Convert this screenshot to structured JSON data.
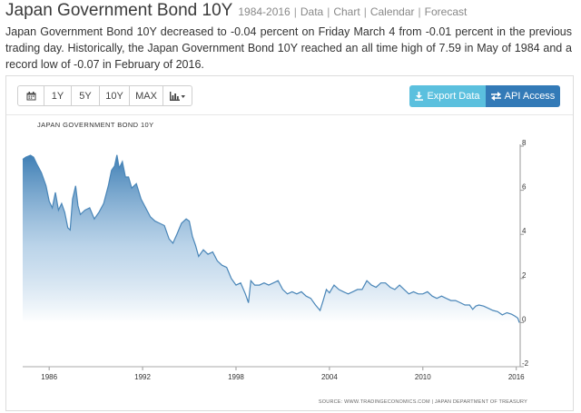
{
  "header": {
    "title": "Japan Government Bond 10Y",
    "range": "1984-2016",
    "links": [
      "Data",
      "Chart",
      "Calendar",
      "Forecast"
    ],
    "description": "Japan Government Bond 10Y decreased to -0.04 percent on Friday March 4 from -0.01 percent in the previous trading day. Historically, the Japan Government Bond 10Y reached an all time high of 7.59 in May of 1984 and a record low of -0.07 in February of 2016."
  },
  "toolbar": {
    "buttons": [
      "1Y",
      "5Y",
      "10Y",
      "MAX"
    ],
    "export_label": "Export Data",
    "api_label": "API Access"
  },
  "colors": {
    "line": "#4a86b8",
    "fill_top": "#3f7fb5",
    "export_bg": "#5bc0de",
    "api_bg": "#337ab7"
  },
  "icons": {
    "calendar": "calendar-icon",
    "chart_type": "bar-chart-icon",
    "export": "download-icon",
    "api": "exchange-icon"
  },
  "chart_data": {
    "type": "area",
    "title": "JAPAN GOVERNMENT BOND 10Y",
    "source": "SOURCE: WWW.TRADINGECONOMICS.COM | JAPAN DEPARTMENT OF TREASURY",
    "x_ticks": [
      "1986",
      "1992",
      "1998",
      "2004",
      "2010",
      "2016"
    ],
    "y_ticks": [
      -2,
      0,
      2,
      4,
      6,
      8
    ],
    "ylim": [
      -2,
      8
    ],
    "xlim": [
      1984.3,
      2016.25
    ],
    "grid": false,
    "y_axis_side": "right",
    "x": [
      1984.3,
      1984.5,
      1984.8,
      1985.0,
      1985.2,
      1985.5,
      1985.8,
      1986.0,
      1986.2,
      1986.4,
      1986.6,
      1986.8,
      1987.0,
      1987.2,
      1987.35,
      1987.5,
      1987.7,
      1987.85,
      1988.0,
      1988.3,
      1988.6,
      1988.9,
      1989.2,
      1989.5,
      1989.8,
      1990.0,
      1990.2,
      1990.35,
      1990.5,
      1990.7,
      1990.9,
      1991.1,
      1991.3,
      1991.6,
      1991.9,
      1992.2,
      1992.5,
      1992.8,
      1993.1,
      1993.4,
      1993.7,
      1993.95,
      1994.2,
      1994.5,
      1994.8,
      1995.0,
      1995.2,
      1995.4,
      1995.6,
      1995.9,
      1996.2,
      1996.5,
      1996.8,
      1997.1,
      1997.4,
      1997.7,
      1998.0,
      1998.3,
      1998.6,
      1998.8,
      1998.95,
      1999.2,
      1999.5,
      1999.8,
      2000.1,
      2000.4,
      2000.7,
      2001.0,
      2001.3,
      2001.6,
      2001.9,
      2002.2,
      2002.5,
      2002.8,
      2003.1,
      2003.4,
      2003.6,
      2003.8,
      2004.0,
      2004.3,
      2004.6,
      2004.9,
      2005.2,
      2005.5,
      2005.8,
      2006.1,
      2006.4,
      2006.7,
      2007.0,
      2007.3,
      2007.6,
      2007.9,
      2008.2,
      2008.5,
      2008.8,
      2009.1,
      2009.4,
      2009.7,
      2010.0,
      2010.3,
      2010.6,
      2010.9,
      2011.2,
      2011.5,
      2011.8,
      2012.1,
      2012.4,
      2012.7,
      2013.0,
      2013.2,
      2013.4,
      2013.6,
      2013.9,
      2014.2,
      2014.5,
      2014.8,
      2015.1,
      2015.4,
      2015.7,
      2015.9,
      2016.0,
      2016.1,
      2016.2
    ],
    "values": [
      7.4,
      7.5,
      7.59,
      7.5,
      7.2,
      6.8,
      6.2,
      5.5,
      5.2,
      5.9,
      5.1,
      5.4,
      5.0,
      4.3,
      4.2,
      5.6,
      6.2,
      5.3,
      4.9,
      5.1,
      5.2,
      4.7,
      5.0,
      5.4,
      6.2,
      6.9,
      7.1,
      7.6,
      7.0,
      7.3,
      6.6,
      6.6,
      6.1,
      6.3,
      5.6,
      5.2,
      4.8,
      4.6,
      4.5,
      4.4,
      3.8,
      3.6,
      4.0,
      4.5,
      4.7,
      4.6,
      3.9,
      3.5,
      3.0,
      3.3,
      3.1,
      3.2,
      2.8,
      2.6,
      2.5,
      2.0,
      1.7,
      1.8,
      1.3,
      0.9,
      1.9,
      1.7,
      1.7,
      1.8,
      1.7,
      1.8,
      1.9,
      1.5,
      1.3,
      1.4,
      1.3,
      1.4,
      1.2,
      1.1,
      0.8,
      0.55,
      1.0,
      1.5,
      1.35,
      1.7,
      1.5,
      1.4,
      1.3,
      1.4,
      1.5,
      1.5,
      1.9,
      1.7,
      1.6,
      1.8,
      1.8,
      1.6,
      1.5,
      1.7,
      1.5,
      1.3,
      1.4,
      1.3,
      1.3,
      1.4,
      1.2,
      1.1,
      1.2,
      1.1,
      1.0,
      1.0,
      0.9,
      0.8,
      0.8,
      0.6,
      0.75,
      0.8,
      0.75,
      0.65,
      0.55,
      0.5,
      0.35,
      0.45,
      0.38,
      0.3,
      0.25,
      0.2,
      0.0
    ]
  }
}
